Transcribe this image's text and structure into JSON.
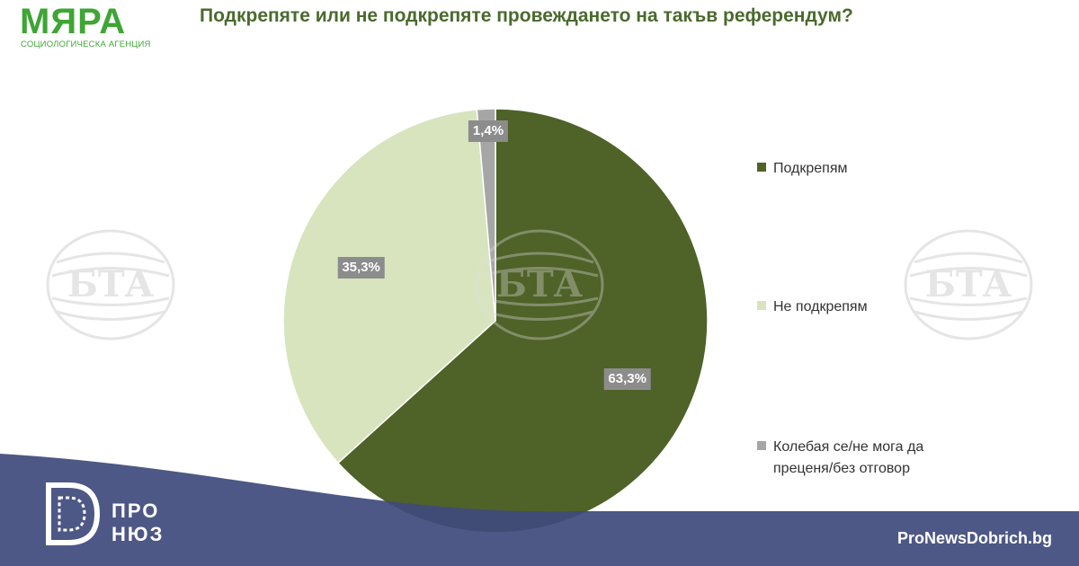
{
  "header": {
    "logo_text": "МЯРА",
    "logo_subtitle": "СОЦИОЛОГИЧЕСКА АГЕНЦИЯ",
    "title": "Подкрепяте или не подкрепяте провеждането на такъв референдум?"
  },
  "watermark": {
    "text": "БТА"
  },
  "chart_data": {
    "type": "pie",
    "title": "Подкрепяте или не подкрепяте провеждането на такъв референдум?",
    "slices": [
      {
        "label": "Подкрепям",
        "value": 63.3,
        "display": "63,3%",
        "color": "#4f6228"
      },
      {
        "label": "Не подкрепям",
        "value": 35.3,
        "display": "35,3%",
        "color": "#d7e4bd"
      },
      {
        "label": "Колебая се/не мога да преценя/без отговор",
        "value": 1.4,
        "display": "1,4%",
        "color": "#a6a6a6"
      }
    ],
    "start_angle": "12 o'clock",
    "direction": "clockwise",
    "legend_position": "right"
  },
  "footer": {
    "brand_line1": "ПРО",
    "brand_line2": "НЮЗ",
    "site": "ProNewsDobrich.bg",
    "band_color": "#3f4a7c"
  }
}
